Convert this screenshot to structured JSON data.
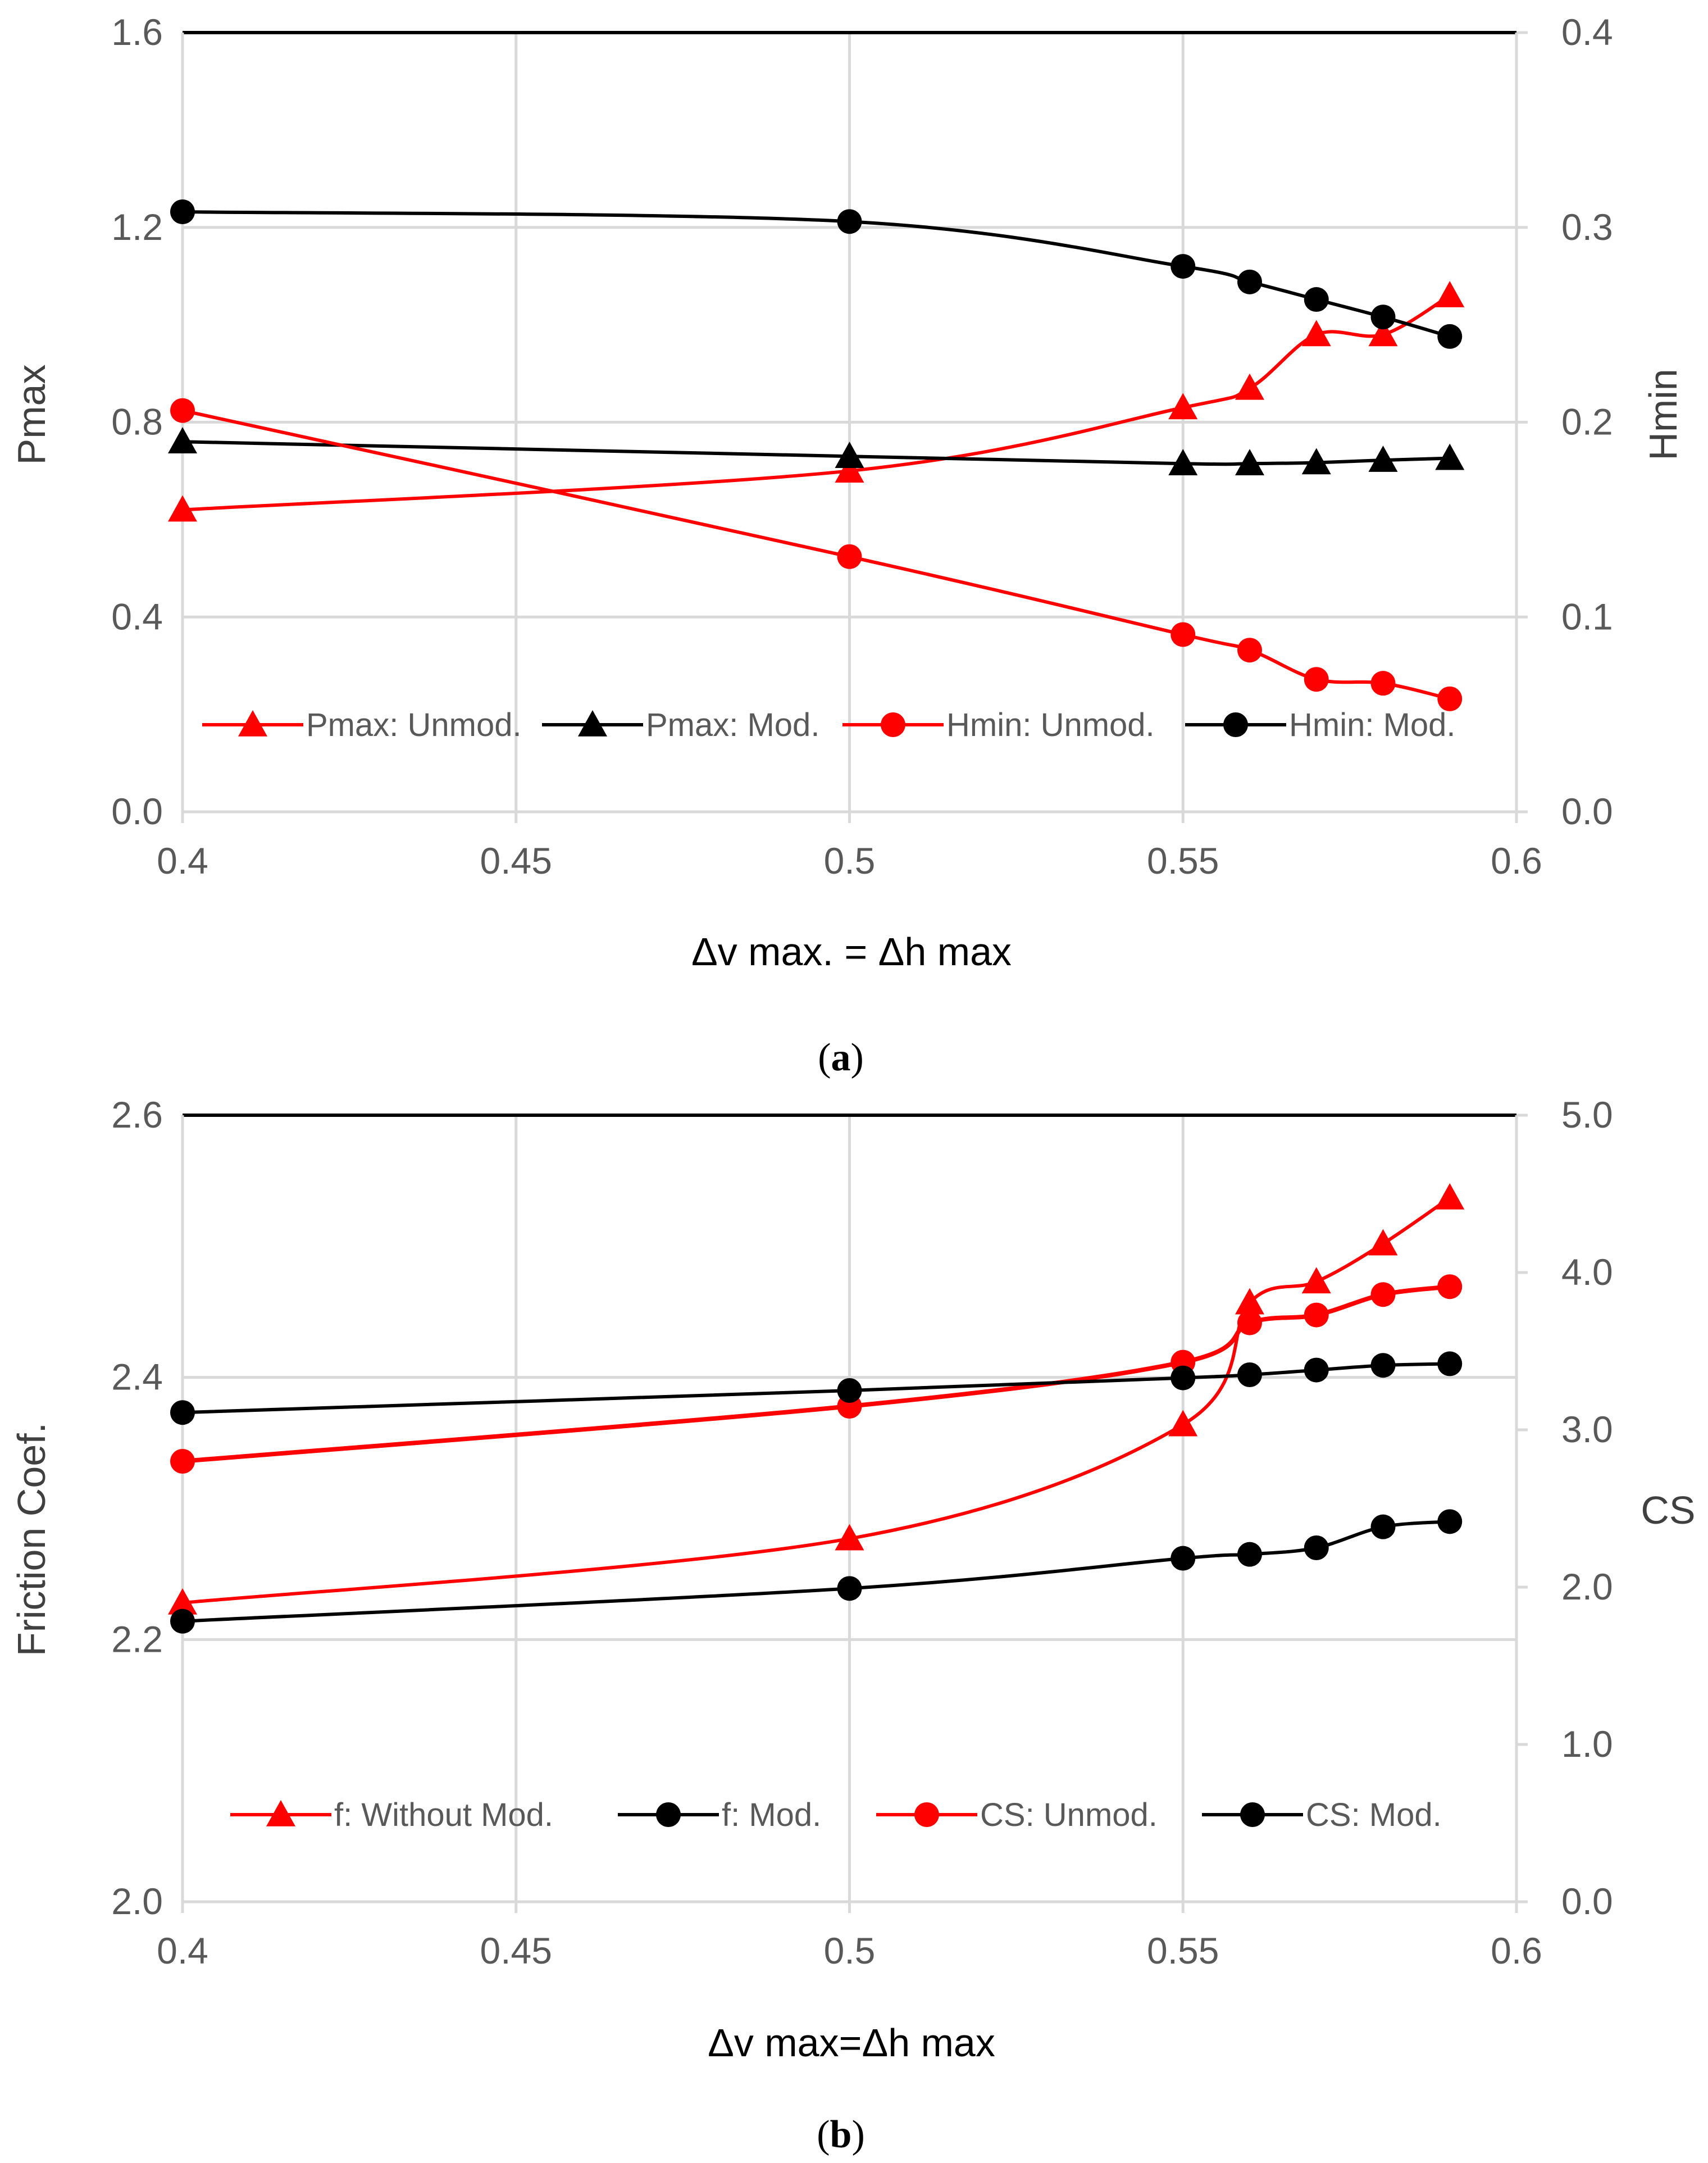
{
  "colors": {
    "red": "#ff0000",
    "black": "#000000",
    "grid": "#d9d9d9",
    "axis_text": "#595959"
  },
  "chart_data": [
    {
      "id": "a",
      "type": "line",
      "caption_open": "(",
      "caption_letter": "a",
      "caption_close": ")",
      "xlabel": "Δv max. = Δh max",
      "ylabel": "Pmax",
      "y2label": "Hmin",
      "xlim": [
        0.4,
        0.6
      ],
      "ylim": [
        0.0,
        1.6
      ],
      "y2lim": [
        0.0,
        0.4
      ],
      "x_ticks": [
        "0.4",
        "0.45",
        "0.5",
        "0.55",
        "0.6"
      ],
      "y_ticks": [
        "0.0",
        "0.4",
        "0.8",
        "1.2",
        "1.6"
      ],
      "y2_ticks": [
        "0.0",
        "0.1",
        "0.2",
        "0.3",
        "0.4"
      ],
      "x": [
        0.4,
        0.5,
        0.55,
        0.56,
        0.57,
        0.58,
        0.59
      ],
      "series": [
        {
          "name": "Pmax: Unmod.",
          "axis": "left",
          "color": "#ff0000",
          "marker": "triangle",
          "values": [
            0.62,
            0.7,
            0.83,
            0.87,
            0.98,
            0.98,
            1.06
          ]
        },
        {
          "name": "Pmax: Mod.",
          "axis": "left",
          "color": "#000000",
          "marker": "triangle",
          "values": [
            0.76,
            0.73,
            0.715,
            0.715,
            0.717,
            0.722,
            0.726
          ]
        },
        {
          "name": "Hmin: Unmod.",
          "axis": "right",
          "color": "#ff0000",
          "marker": "circle",
          "values": [
            0.206,
            0.131,
            0.091,
            0.083,
            0.068,
            0.066,
            0.058
          ]
        },
        {
          "name": "Hmin: Mod.",
          "axis": "right",
          "color": "#000000",
          "marker": "circle",
          "values": [
            0.308,
            0.303,
            0.28,
            0.272,
            0.263,
            0.254,
            0.244
          ]
        }
      ]
    },
    {
      "id": "b",
      "type": "line",
      "caption_open": "(",
      "caption_letter": "b",
      "caption_close": ")",
      "xlabel": "Δv max=Δh max",
      "ylabel": "Friction Coef.",
      "y2label": "CS",
      "xlim": [
        0.4,
        0.6
      ],
      "ylim": [
        2.0,
        2.6
      ],
      "y2lim": [
        0.0,
        5.0
      ],
      "x_ticks": [
        "0.4",
        "0.45",
        "0.5",
        "0.55",
        "0.6"
      ],
      "y_ticks": [
        "2.0",
        "2.2",
        "2.4",
        "2.6"
      ],
      "y2_ticks": [
        "0.0",
        "1.0",
        "2.0",
        "3.0",
        "4.0",
        "5.0"
      ],
      "x": [
        0.4,
        0.5,
        0.55,
        0.56,
        0.57,
        0.58,
        0.59
      ],
      "series": [
        {
          "name": "f: Without Mod.",
          "axis": "left",
          "color": "#ff0000",
          "marker": "triangle",
          "values": [
            2.228,
            2.277,
            2.364,
            2.457,
            2.473,
            2.502,
            2.537
          ]
        },
        {
          "name": "f: Mod.",
          "axis": "left",
          "color": "#000000",
          "marker": "circle",
          "values": [
            2.214,
            2.239,
            2.262,
            2.265,
            2.27,
            2.286,
            2.29
          ]
        },
        {
          "name": "CS: Unmod.",
          "axis": "right",
          "color": "#ff0000",
          "marker": "circle",
          "values": [
            2.8,
            3.15,
            3.43,
            3.68,
            3.73,
            3.86,
            3.91
          ]
        },
        {
          "name": "CS: Mod.",
          "axis": "right",
          "color": "#000000",
          "marker": "circle",
          "values": [
            3.11,
            3.25,
            3.33,
            3.35,
            3.38,
            3.41,
            3.42
          ]
        }
      ]
    }
  ]
}
